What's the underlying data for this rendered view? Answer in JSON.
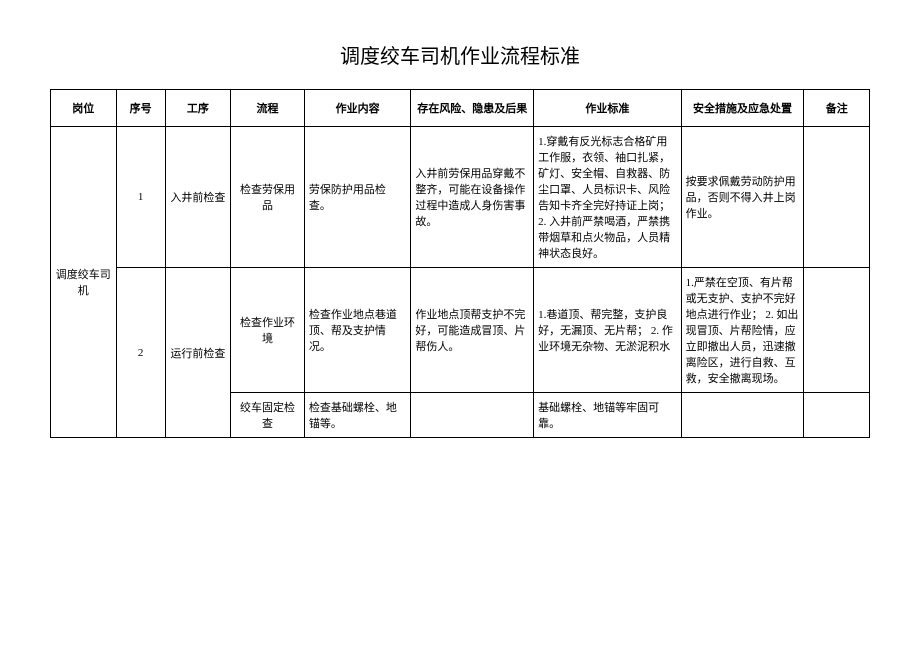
{
  "title": "调度绞车司机作业流程标准",
  "headers": {
    "post": "岗位",
    "seq": "序号",
    "process": "工序",
    "flow": "流程",
    "content": "作业内容",
    "risk": "存在风险、隐患及后果",
    "standard": "作业标准",
    "safety": "安全措施及应急处置",
    "remark": "备注"
  },
  "post_name": "调度绞车司机",
  "rows": [
    {
      "seq": "1",
      "process": "入井前检查",
      "flow": "检查劳保用品",
      "content": "劳保防护用品检查。",
      "risk": "入井前劳保用品穿戴不整齐，可能在设备操作过程中造成人身伤害事故。",
      "standard": "1.穿戴有反光标志合格矿用工作服，衣领、袖口扎紧，矿灯、安全帽、自救器、防尘口罩、人员标识卡、风险告知卡齐全完好持证上岗；\n2. 入井前严禁喝酒，严禁携带烟草和点火物品，人员精神状态良好。",
      "safety": "按要求佩戴劳动防护用品，否则不得入井上岗作业。",
      "remark": ""
    },
    {
      "seq": "2",
      "process": "运行前检查",
      "flow": "检查作业环境",
      "content": "检查作业地点巷道顶、帮及支护情况。",
      "risk": "作业地点顶帮支护不完好，可能造成冒顶、片帮伤人。",
      "standard": "1.巷道顶、帮完整，支护良好，无漏顶、无片帮；\n2. 作业环境无杂物、无淤泥积水",
      "safety": "1.严禁在空顶、有片帮或无支护、支护不完好地点进行作业；\n2. 如出现冒顶、片帮险情，应立即撤出人员，迅速撤离险区，进行自救、互救，安全撤离现场。",
      "remark": ""
    },
    {
      "seq": "",
      "process": "",
      "flow": "绞车固定检查",
      "content": "检查基础螺栓、地锚等。",
      "risk": "",
      "standard": "基础螺栓、地锚等牢固可靠。",
      "safety": "",
      "remark": ""
    }
  ]
}
